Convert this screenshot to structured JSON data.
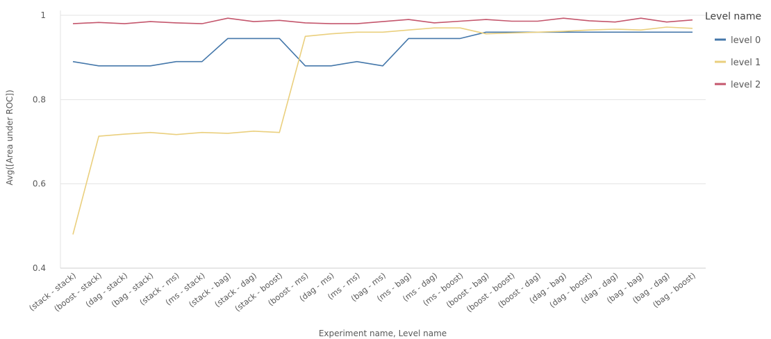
{
  "chart_data": {
    "type": "line",
    "xlabel": "Experiment name,  Level name",
    "ylabel": "Avg([Area under ROC])",
    "ylim": [
      0.4,
      1.0
    ],
    "y_ticks": [
      "0.4",
      "0.6",
      "0.8",
      "1"
    ],
    "y_tick_values": [
      0.4,
      0.6,
      0.8,
      1.0
    ],
    "grid": true,
    "legend_title": "Level name",
    "legend_position": "top-right",
    "categories": [
      "(stack - stack)",
      "(boost - stack)",
      "(dag - stack)",
      "(bag - stack)",
      "(stack - ms)",
      "(ms - stack)",
      "(stack - bag)",
      "(stack - dag)",
      "(stack - boost)",
      "(boost - ms)",
      "(dag - ms)",
      "(ms - ms)",
      "(bag - ms)",
      "(ms - bag)",
      "(ms - dag)",
      "(ms - boost)",
      "(boost - bag)",
      "(boost - boost)",
      "(boost - dag)",
      "(dag - bag)",
      "(dag - boost)",
      "(dag - dag)",
      "(bag - bag)",
      "(bag - dag)",
      "(bag - boost)"
    ],
    "series": [
      {
        "name": "level 0",
        "color": "#4477aa",
        "values": [
          0.89,
          0.88,
          0.88,
          0.88,
          0.89,
          0.89,
          0.945,
          0.945,
          0.945,
          0.88,
          0.88,
          0.89,
          0.88,
          0.945,
          0.945,
          0.945,
          0.96,
          0.96,
          0.96,
          0.96,
          0.96,
          0.96,
          0.96,
          0.96,
          0.96
        ]
      },
      {
        "name": "level 1",
        "color": "#eacf7d",
        "values": [
          0.48,
          0.713,
          0.718,
          0.722,
          0.717,
          0.722,
          0.72,
          0.725,
          0.722,
          0.95,
          0.956,
          0.96,
          0.96,
          0.965,
          0.97,
          0.97,
          0.956,
          0.958,
          0.96,
          0.962,
          0.965,
          0.967,
          0.965,
          0.972,
          0.969
        ]
      },
      {
        "name": "level 2",
        "color": "#c4566c",
        "values": [
          0.98,
          0.983,
          0.98,
          0.985,
          0.982,
          0.98,
          0.993,
          0.985,
          0.988,
          0.982,
          0.98,
          0.98,
          0.985,
          0.99,
          0.982,
          0.986,
          0.99,
          0.986,
          0.986,
          0.993,
          0.987,
          0.984,
          0.993,
          0.984,
          0.989
        ]
      }
    ]
  }
}
